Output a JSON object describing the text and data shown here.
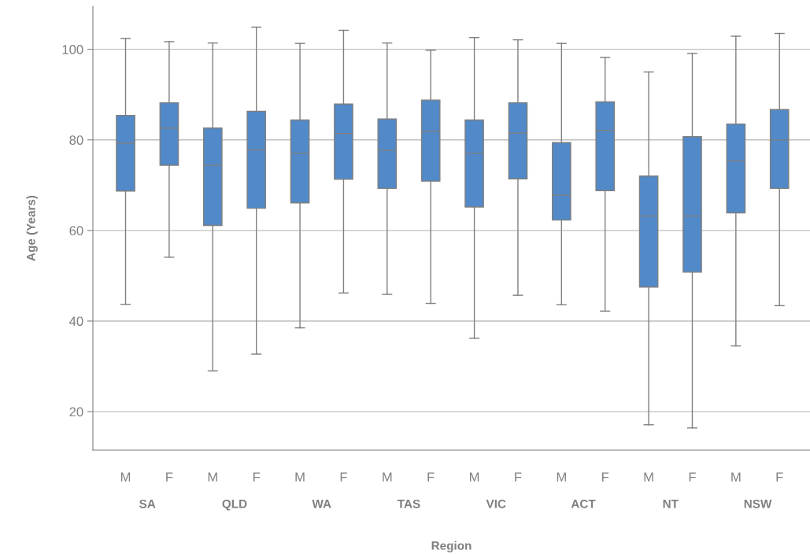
{
  "chart_data": {
    "type": "box",
    "xlabel": "Region",
    "ylabel": "Age (Years)",
    "categories": [
      "M",
      "F",
      "M",
      "F",
      "M",
      "F",
      "M",
      "F",
      "M",
      "F",
      "M",
      "F",
      "M",
      "F",
      "M",
      "F"
    ],
    "annotations": [
      "SA",
      "QLD",
      "WA",
      "TAS",
      "VIC",
      "ACT",
      "NT",
      "NSW"
    ],
    "color": "#5189c9",
    "ylim": [
      11.5,
      109.5
    ],
    "yticks": [
      20,
      40,
      60,
      80,
      100
    ],
    "grid": "y",
    "boxes": [
      {
        "low": 43.7,
        "q1": 68.7,
        "median": 79.3,
        "q3": 85.4,
        "high": 102.4
      },
      {
        "low": 54.1,
        "q1": 74.4,
        "median": 82.6,
        "q3": 88.2,
        "high": 101.7
      },
      {
        "low": 29.0,
        "q1": 61.1,
        "median": 74.4,
        "q3": 82.6,
        "high": 101.4
      },
      {
        "low": 32.7,
        "q1": 64.9,
        "median": 77.8,
        "q3": 86.3,
        "high": 104.9
      },
      {
        "low": 38.5,
        "q1": 66.1,
        "median": 77.0,
        "q3": 84.4,
        "high": 101.3
      },
      {
        "low": 46.2,
        "q1": 71.3,
        "median": 81.4,
        "q3": 87.9,
        "high": 104.2
      },
      {
        "low": 45.9,
        "q1": 69.3,
        "median": 77.7,
        "q3": 84.6,
        "high": 101.4
      },
      {
        "low": 43.9,
        "q1": 70.9,
        "median": 81.9,
        "q3": 88.8,
        "high": 99.8
      },
      {
        "low": 36.2,
        "q1": 65.2,
        "median": 77.0,
        "q3": 84.4,
        "high": 102.6
      },
      {
        "low": 45.7,
        "q1": 71.4,
        "median": 81.5,
        "q3": 88.2,
        "high": 102.1
      },
      {
        "low": 43.6,
        "q1": 62.3,
        "median": 67.8,
        "q3": 79.4,
        "high": 101.3
      },
      {
        "low": 42.2,
        "q1": 68.8,
        "median": 82.1,
        "q3": 88.4,
        "high": 98.2
      },
      {
        "low": 17.1,
        "q1": 47.5,
        "median": 63.2,
        "q3": 72.0,
        "high": 95.0
      },
      {
        "low": 16.4,
        "q1": 50.8,
        "median": 63.2,
        "q3": 80.7,
        "high": 99.1
      },
      {
        "low": 34.5,
        "q1": 63.9,
        "median": 75.4,
        "q3": 83.5,
        "high": 102.9
      },
      {
        "low": 43.4,
        "q1": 69.3,
        "median": 80.0,
        "q3": 86.7,
        "high": 103.5
      }
    ]
  }
}
